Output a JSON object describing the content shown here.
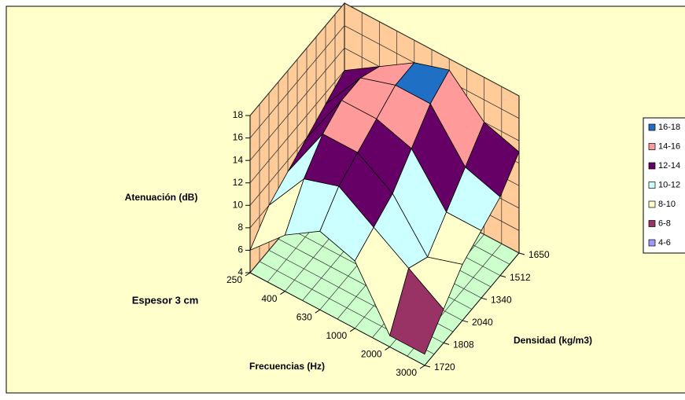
{
  "chart_data": {
    "type": "surface3d",
    "annotations": [
      "Espesor 3 cm"
    ],
    "xlabel": "Frecuencias (Hz)",
    "ylabel": "Densidad (kg/m3)",
    "zlabel": "Atenuación (dB)",
    "x": [
      250,
      400,
      630,
      1000,
      2000,
      3000
    ],
    "y": [
      1650,
      1512,
      1340,
      2040,
      1808,
      1720
    ],
    "z": [
      [
        12,
        11,
        10,
        9,
        8,
        6
      ],
      [
        14,
        15,
        15,
        14,
        12,
        9
      ],
      [
        16,
        16,
        15,
        14,
        13,
        11
      ],
      [
        17,
        16,
        14,
        12,
        11,
        10
      ],
      [
        14,
        12,
        10,
        8,
        9,
        5
      ],
      [
        13,
        11,
        10,
        9,
        7,
        5
      ]
    ],
    "zlim": [
      4,
      18
    ],
    "zticks": [
      4,
      6,
      8,
      10,
      12,
      14,
      16,
      18
    ],
    "legend": {
      "names": [
        "16-18",
        "14-16",
        "12-14",
        "10-12",
        "8-10",
        "6-8",
        "4-6"
      ],
      "colors": [
        "#1f6fc4",
        "#ff9a9a",
        "#660066",
        "#ccffff",
        "#ffffcc",
        "#993366",
        "#9999ff"
      ]
    },
    "wall_color": "#ffcc99",
    "floor_color": "#ccffcc",
    "grid": true
  }
}
